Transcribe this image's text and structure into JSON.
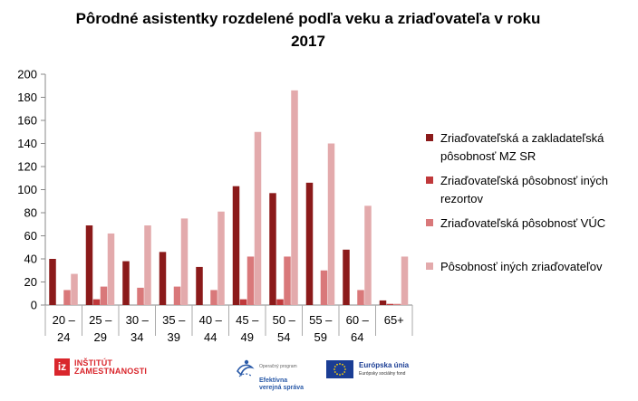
{
  "chart_data": {
    "type": "bar",
    "title": "Pôrodné asistentky rozdelené podľa veku a zriaďovateľa v roku\n2017",
    "categories": [
      "20 – 24",
      "25 – 29",
      "30 – 34",
      "35 – 39",
      "40 – 44",
      "45 – 49",
      "50 – 54",
      "55 – 59",
      "60 – 64",
      "65+"
    ],
    "series": [
      {
        "name": "Zriaďovateľská a zakladateľská pôsobnosť  MZ SR",
        "color": "#8b1a1a",
        "values": [
          40,
          69,
          38,
          46,
          33,
          103,
          97,
          106,
          48,
          4
        ]
      },
      {
        "name": "Zriaďovateľská pôsobnosť  iných rezortov",
        "color": "#c0393b",
        "values": [
          0,
          5,
          0,
          0,
          0,
          5,
          5,
          0,
          0,
          1
        ]
      },
      {
        "name": "Zriaďovateľská pôsobnosť  VÚC",
        "color": "#d9787a",
        "values": [
          13,
          16,
          15,
          16,
          13,
          42,
          42,
          30,
          13,
          1
        ]
      },
      {
        "name": "Pôsobnosť  iných zriaďovateľov",
        "color": "#e3aaac",
        "values": [
          27,
          62,
          69,
          75,
          81,
          150,
          186,
          140,
          86,
          42
        ]
      }
    ],
    "ylim": [
      0,
      200
    ],
    "yticks": [
      0,
      20,
      40,
      60,
      80,
      100,
      120,
      140,
      160,
      180,
      200
    ],
    "grid": false,
    "legend": "right"
  },
  "footer": {
    "iz_mark": "iz",
    "iz_name": "INŠTITÚT\nZAMESTNANOSTI",
    "ovs_small": "Operačný program",
    "ovs_name": "Efektívna\nverejná správa",
    "eu_name": "Európska únia",
    "eu_sub": "Európsky sociálny fond"
  }
}
